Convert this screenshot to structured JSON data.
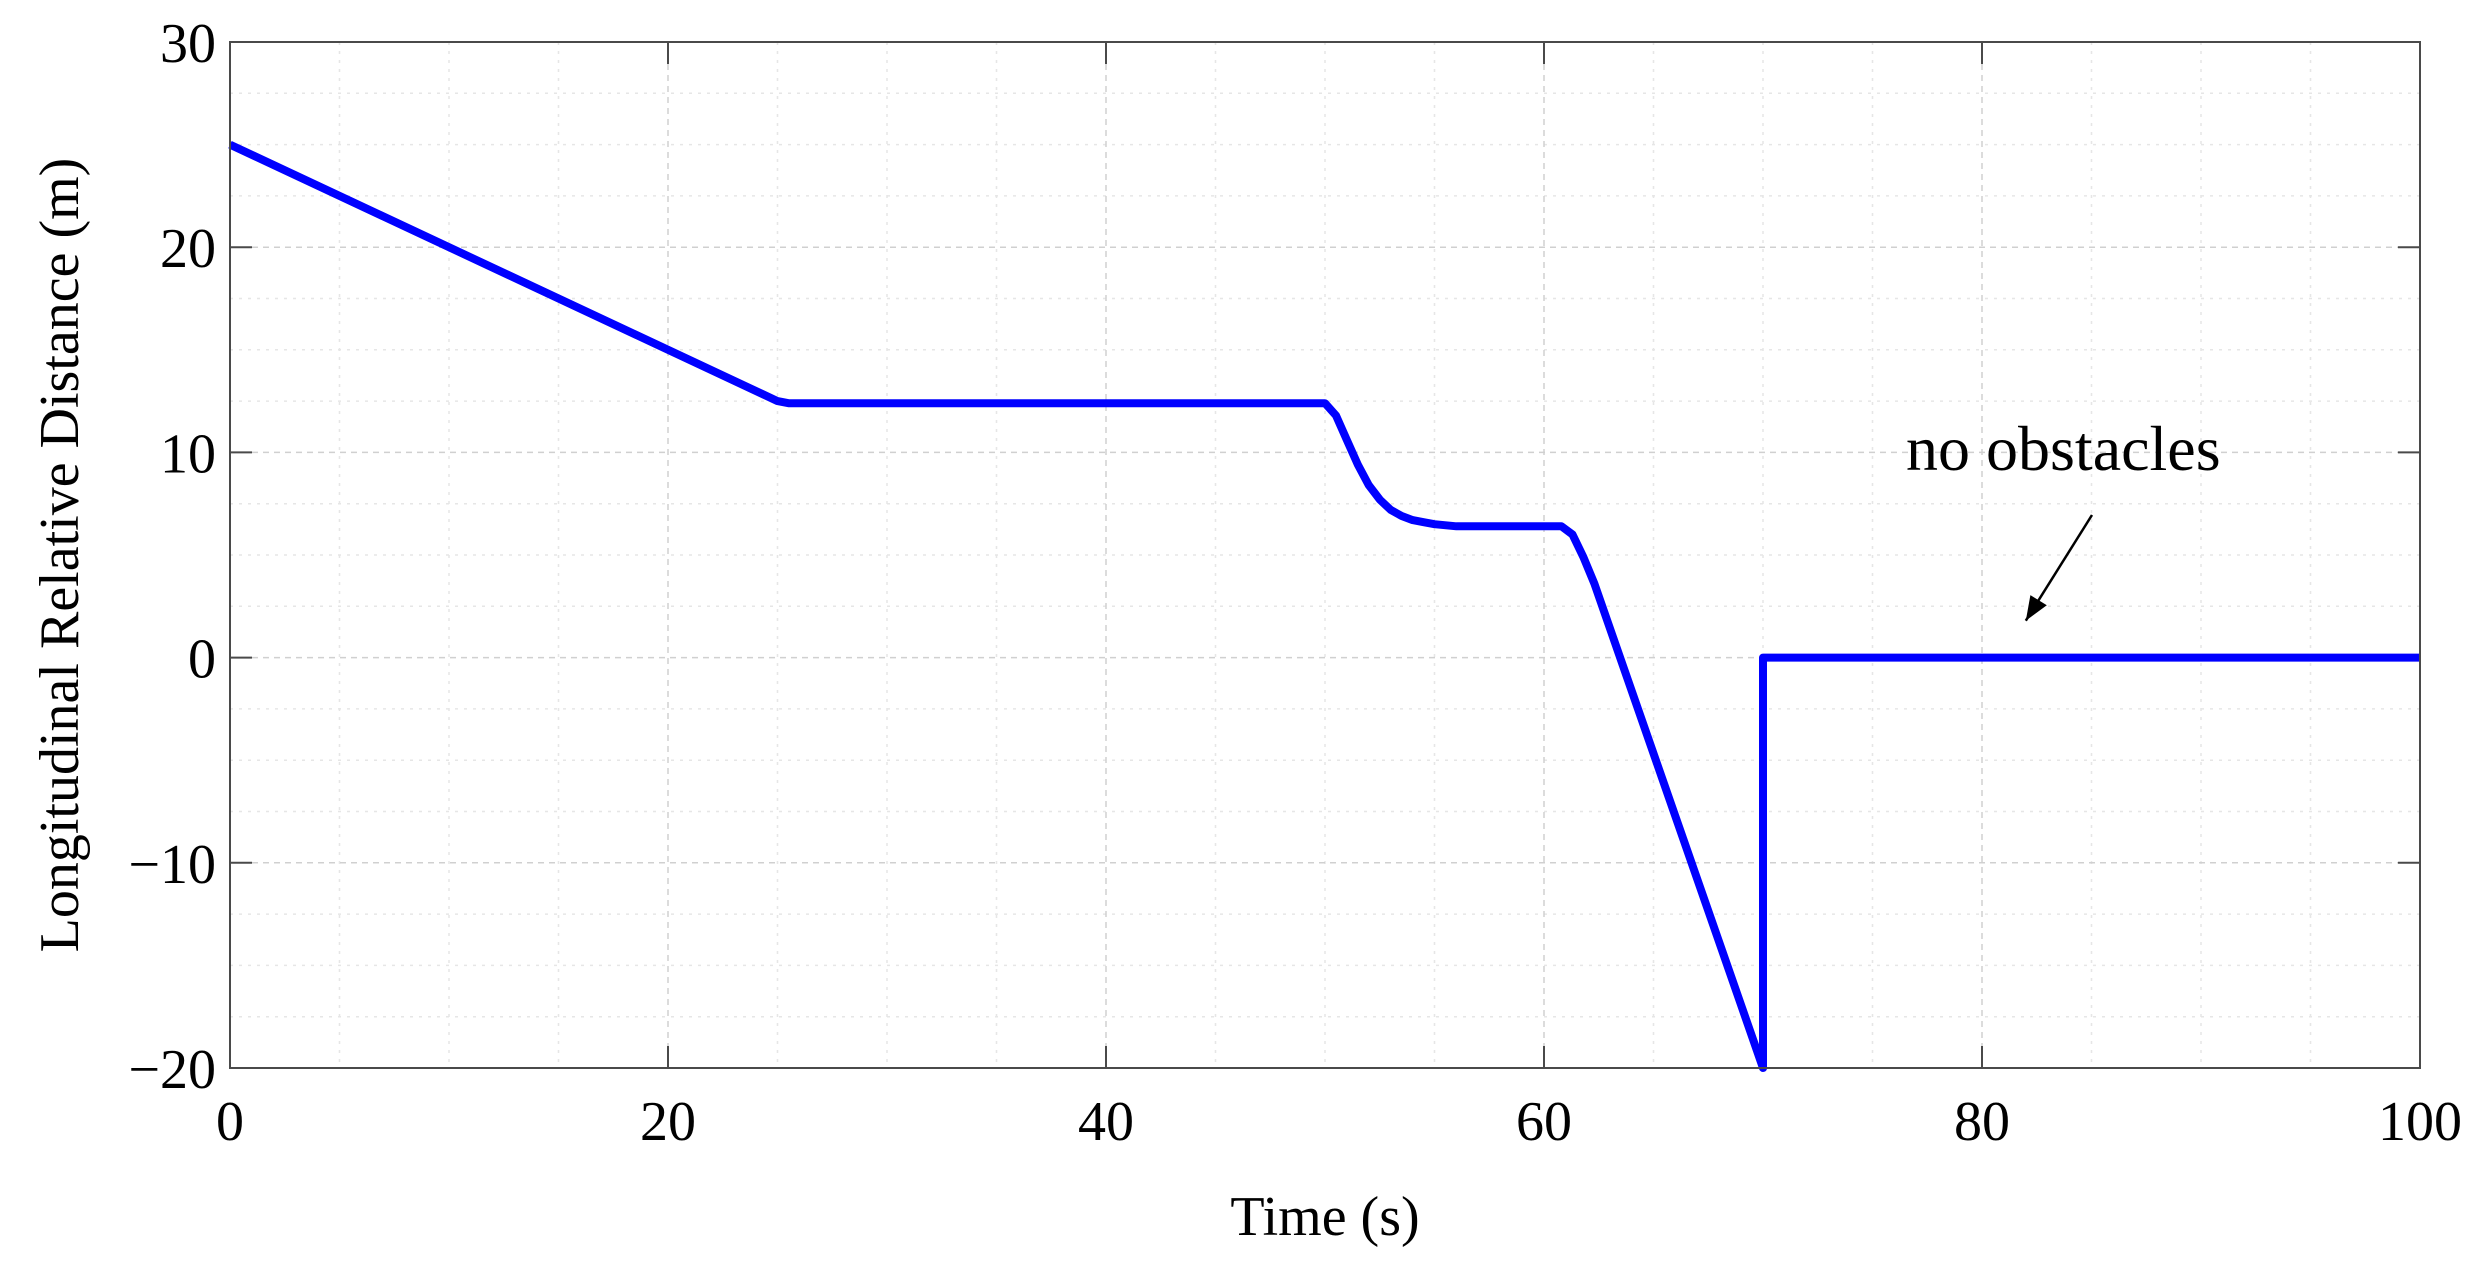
{
  "chart_data": {
    "type": "line",
    "title": "",
    "xlabel": "Time (s)",
    "ylabel": "Longitudinal Relative Distance (m)",
    "xlim": [
      0,
      100
    ],
    "ylim": [
      -20,
      30
    ],
    "xticks": [
      0,
      20,
      40,
      60,
      80,
      100
    ],
    "xtick_labels": [
      "0",
      "20",
      "40",
      "60",
      "80",
      "100"
    ],
    "yticks": [
      -20,
      -10,
      0,
      10,
      20,
      30
    ],
    "ytick_labels": [
      "−20",
      "−10",
      "0",
      "10",
      "20",
      "30"
    ],
    "grid": true,
    "legend": "none",
    "series": [
      {
        "color": "#0000ff",
        "x": [
          0,
          25,
          25.5,
          50,
          50.5,
          51,
          51.5,
          52,
          52.5,
          53,
          53.5,
          54,
          54.5,
          55,
          56,
          60,
          60.8,
          61.3,
          61.8,
          62.3,
          70,
          70,
          100
        ],
        "y": [
          25,
          12.5,
          12.4,
          12.4,
          11.8,
          10.6,
          9.4,
          8.4,
          7.7,
          7.2,
          6.9,
          6.7,
          6.6,
          6.5,
          6.4,
          6.4,
          6.4,
          6.0,
          4.9,
          3.6,
          -20,
          0,
          0
        ]
      }
    ],
    "annotations": [
      {
        "text": "no obstacles",
        "arrow_to": [
          82,
          1.8
        ]
      }
    ]
  }
}
